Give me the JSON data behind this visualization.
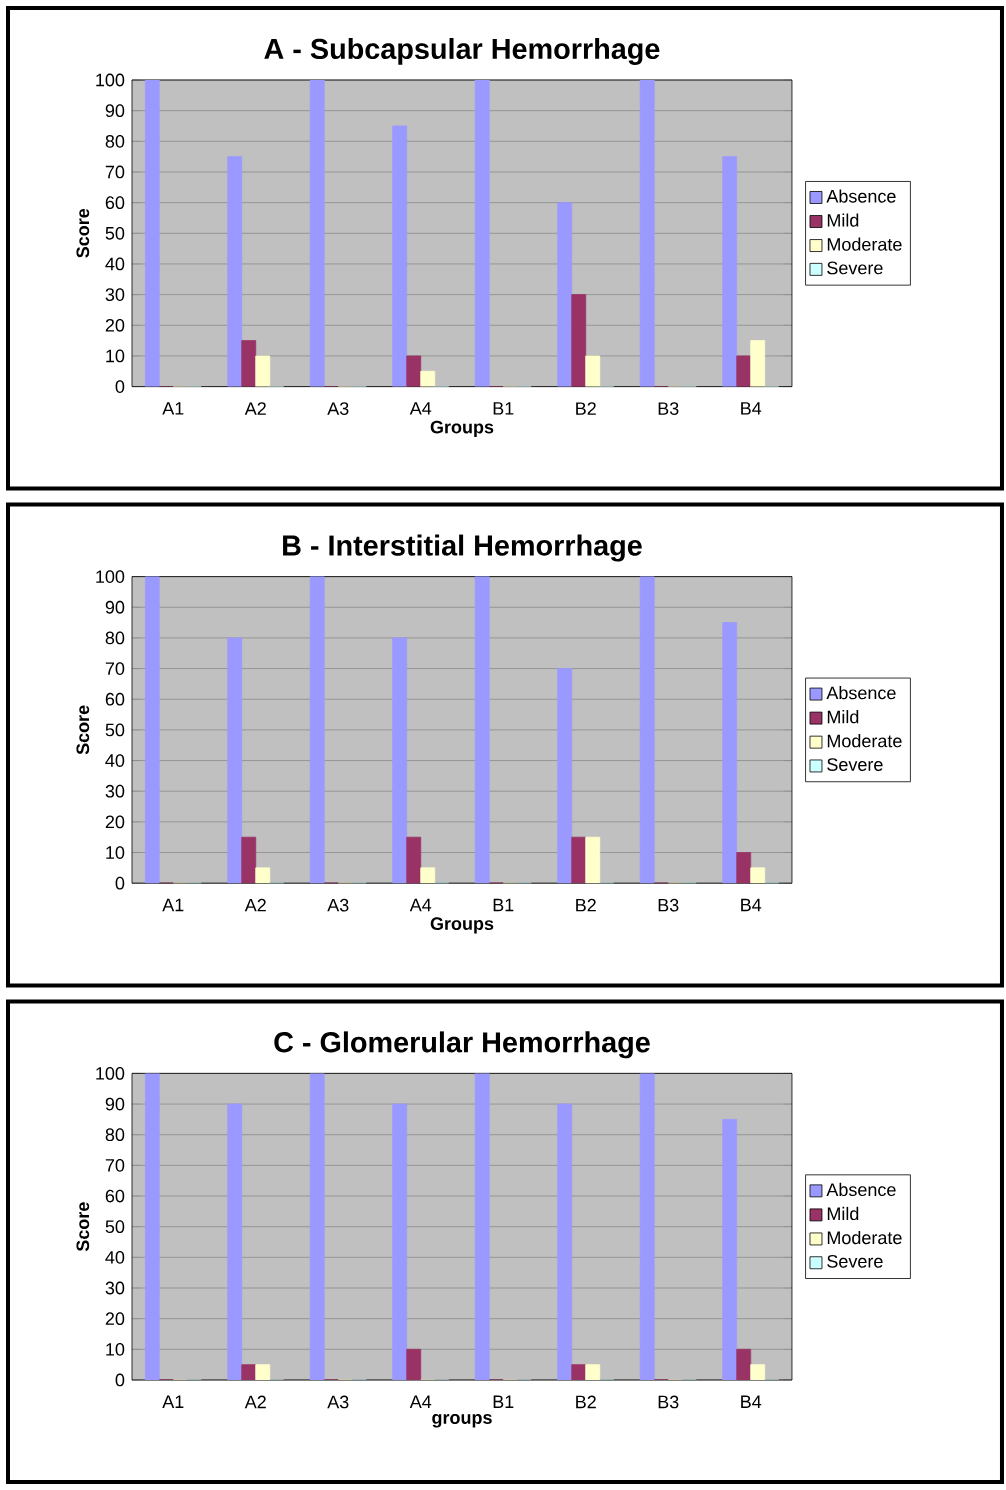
{
  "chart_data": [
    {
      "type": "bar",
      "title": "A - Subcapsular Hemorrhage",
      "xlabel": "Groups",
      "ylabel": "Score",
      "categories": [
        "A1",
        "A2",
        "A3",
        "A4",
        "B1",
        "B2",
        "B3",
        "B4"
      ],
      "series": [
        {
          "name": "Absence",
          "color": "#9999ff",
          "values": [
            100,
            75,
            100,
            85,
            100,
            60,
            100,
            75
          ]
        },
        {
          "name": "Mild",
          "color": "#993366",
          "values": [
            0,
            15,
            0,
            10,
            0,
            30,
            0,
            10
          ]
        },
        {
          "name": "Moderate",
          "color": "#ffffcc",
          "values": [
            0,
            10,
            0,
            5,
            0,
            10,
            0,
            15
          ]
        },
        {
          "name": "Severe",
          "color": "#ccffff",
          "values": [
            0,
            0,
            0,
            0,
            0,
            0,
            0,
            0
          ]
        }
      ],
      "ylim": [
        0,
        100
      ],
      "yticks": [
        0,
        10,
        20,
        30,
        40,
        50,
        60,
        70,
        80,
        90,
        100
      ],
      "grid": "y",
      "legend": "right"
    },
    {
      "type": "bar",
      "title": "B - Interstitial Hemorrhage",
      "xlabel": "Groups",
      "ylabel": "Score",
      "categories": [
        "A1",
        "A2",
        "A3",
        "A4",
        "B1",
        "B2",
        "B3",
        "B4"
      ],
      "series": [
        {
          "name": "Absence",
          "color": "#9999ff",
          "values": [
            100,
            80,
            100,
            80,
            100,
            70,
            100,
            85
          ]
        },
        {
          "name": "Mild",
          "color": "#993366",
          "values": [
            0,
            15,
            0,
            15,
            0,
            15,
            0,
            10
          ]
        },
        {
          "name": "Moderate",
          "color": "#ffffcc",
          "values": [
            0,
            5,
            0,
            5,
            0,
            15,
            0,
            5
          ]
        },
        {
          "name": "Severe",
          "color": "#ccffff",
          "values": [
            0,
            0,
            0,
            0,
            0,
            0,
            0,
            0
          ]
        }
      ],
      "ylim": [
        0,
        100
      ],
      "yticks": [
        0,
        10,
        20,
        30,
        40,
        50,
        60,
        70,
        80,
        90,
        100
      ],
      "grid": "y",
      "legend": "right"
    },
    {
      "type": "bar",
      "title": "C - Glomerular Hemorrhage",
      "xlabel": "groups",
      "ylabel": "Score",
      "categories": [
        "A1",
        "A2",
        "A3",
        "A4",
        "B1",
        "B2",
        "B3",
        "B4"
      ],
      "series": [
        {
          "name": "Absence",
          "color": "#9999ff",
          "values": [
            100,
            90,
            100,
            90,
            100,
            90,
            100,
            85
          ]
        },
        {
          "name": "Mild",
          "color": "#993366",
          "values": [
            0,
            5,
            0,
            10,
            0,
            5,
            0,
            10
          ]
        },
        {
          "name": "Moderate",
          "color": "#ffffcc",
          "values": [
            0,
            5,
            0,
            0,
            0,
            5,
            0,
            5
          ]
        },
        {
          "name": "Severe",
          "color": "#ccffff",
          "values": [
            0,
            0,
            0,
            0,
            0,
            0,
            0,
            0
          ]
        }
      ],
      "ylim": [
        0,
        100
      ],
      "yticks": [
        0,
        10,
        20,
        30,
        40,
        50,
        60,
        70,
        80,
        90,
        100
      ],
      "grid": "y",
      "legend": "right"
    }
  ]
}
